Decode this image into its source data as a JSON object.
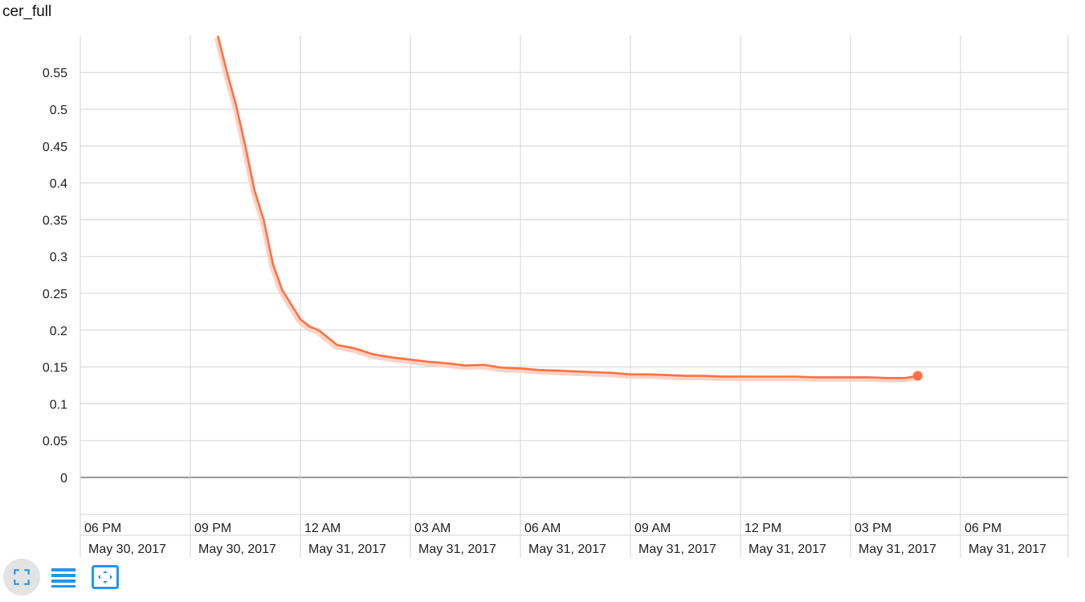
{
  "title": "cer_full",
  "colors": {
    "series": "#ff7043",
    "series_raw": "#ffd2c4",
    "grid": "#d3d3d3",
    "axis": "#999999",
    "icon": "#2196f3"
  },
  "toolbar": {
    "fit_icon": "fit-domain-icon",
    "log_icon": "toggle-log-scale-icon",
    "expand_icon": "expand-icon"
  },
  "chart_data": {
    "type": "line",
    "title": "cer_full",
    "xlabel": "",
    "ylabel": "",
    "grid": true,
    "x_type": "time",
    "x_range": [
      "2017-05-30 16:30",
      "2017-05-31 19:30"
    ],
    "ylim": [
      -0.05,
      0.6
    ],
    "y_ticks": [
      "0",
      "0.05",
      "0.1",
      "0.15",
      "0.2",
      "0.25",
      "0.3",
      "0.35",
      "0.4",
      "0.45",
      "0.5",
      "0.55"
    ],
    "x_ticks": [
      {
        "time": "06 PM",
        "date": "May 30, 2017"
      },
      {
        "time": "09 PM",
        "date": "May 30, 2017"
      },
      {
        "time": "12 AM",
        "date": "May 31, 2017"
      },
      {
        "time": "03 AM",
        "date": "May 31, 2017"
      },
      {
        "time": "06 AM",
        "date": "May 31, 2017"
      },
      {
        "time": "09 AM",
        "date": "May 31, 2017"
      },
      {
        "time": "12 PM",
        "date": "May 31, 2017"
      },
      {
        "time": "03 PM",
        "date": "May 31, 2017"
      },
      {
        "time": "06 PM",
        "date": "May 31, 2017"
      }
    ],
    "series": [
      {
        "x": [
          "2017-05-30 21:45",
          "2017-05-30 22:00",
          "2017-05-30 22:15",
          "2017-05-30 22:30",
          "2017-05-30 22:45",
          "2017-05-30 23:00",
          "2017-05-30 23:15",
          "2017-05-30 23:30",
          "2017-05-30 23:45",
          "2017-05-31 00:00",
          "2017-05-31 00:15",
          "2017-05-31 00:30",
          "2017-05-31 00:45",
          "2017-05-31 01:00",
          "2017-05-31 01:30",
          "2017-05-31 02:00",
          "2017-05-31 02:30",
          "2017-05-31 03:00",
          "2017-05-31 03:30",
          "2017-05-31 04:00",
          "2017-05-31 04:30",
          "2017-05-31 05:00",
          "2017-05-31 05:30",
          "2017-05-31 06:00",
          "2017-05-31 06:30",
          "2017-05-31 07:00",
          "2017-05-31 07:30",
          "2017-05-31 08:00",
          "2017-05-31 08:30",
          "2017-05-31 09:00",
          "2017-05-31 09:30",
          "2017-05-31 10:00",
          "2017-05-31 10:30",
          "2017-05-31 11:00",
          "2017-05-31 11:30",
          "2017-05-31 12:00",
          "2017-05-31 12:30",
          "2017-05-31 13:00",
          "2017-05-31 13:30",
          "2017-05-31 14:00",
          "2017-05-31 14:30",
          "2017-05-31 15:00",
          "2017-05-31 15:30",
          "2017-05-31 16:00",
          "2017-05-31 16:30",
          "2017-05-31 16:50"
        ],
        "y": [
          0.6,
          0.55,
          0.505,
          0.45,
          0.39,
          0.35,
          0.29,
          0.255,
          0.235,
          0.215,
          0.205,
          0.2,
          0.19,
          0.18,
          0.175,
          0.167,
          0.163,
          0.16,
          0.157,
          0.155,
          0.152,
          0.153,
          0.149,
          0.148,
          0.146,
          0.145,
          0.144,
          0.143,
          0.142,
          0.14,
          0.14,
          0.139,
          0.138,
          0.138,
          0.137,
          0.137,
          0.137,
          0.137,
          0.137,
          0.136,
          0.136,
          0.136,
          0.136,
          0.135,
          0.135,
          0.138
        ]
      }
    ]
  }
}
